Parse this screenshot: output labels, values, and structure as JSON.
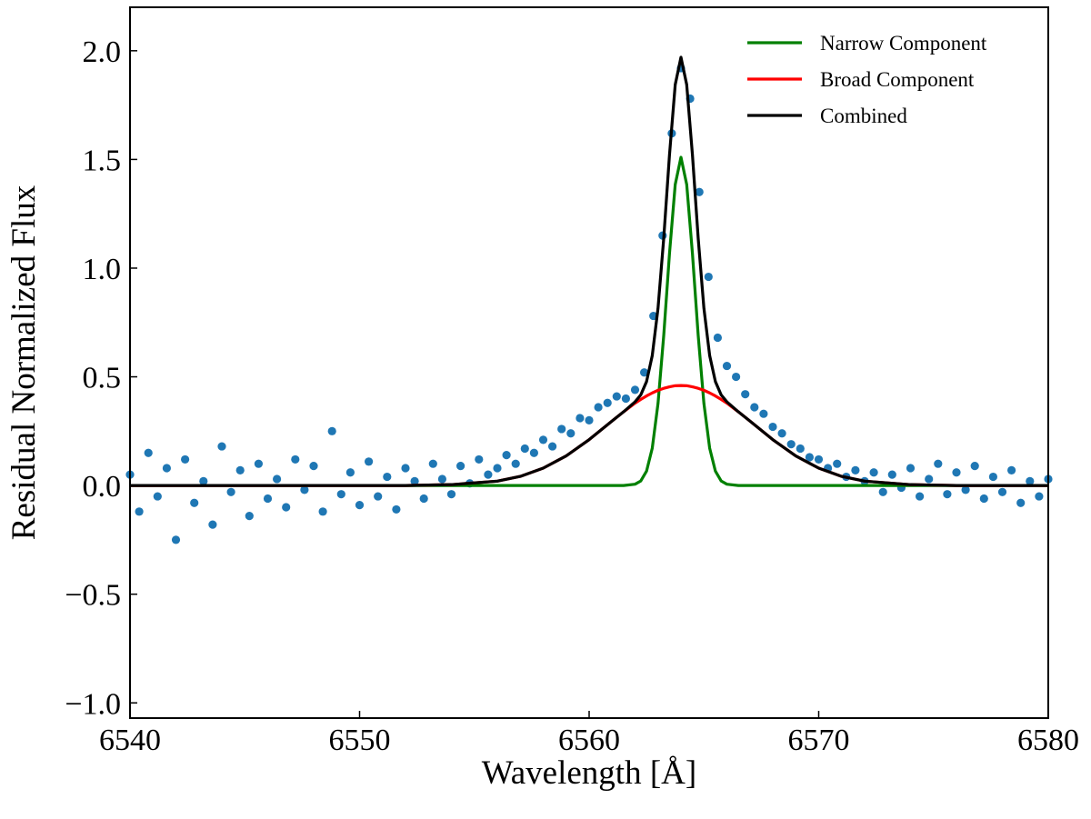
{
  "chart_data": {
    "type": "line",
    "xlabel": "Wavelength [Å]",
    "ylabel": "Residual Normalized Flux",
    "xlim": [
      6540,
      6580
    ],
    "ylim": [
      -1.07,
      2.2
    ],
    "xticks": [
      6540,
      6550,
      6560,
      6570,
      6580
    ],
    "yticks": [
      {
        "value": -1.0,
        "label": "−1.0"
      },
      {
        "value": -0.5,
        "label": "−0.5"
      },
      {
        "value": 0.0,
        "label": "0.0"
      },
      0.5,
      {
        "value": 1.0,
        "label": "1.0"
      },
      1.5,
      {
        "value": 2.0,
        "label": "2.0"
      }
    ],
    "legend": "upper right",
    "points": {
      "color": "#1f77b4",
      "x": [
        6540.0,
        6540.4,
        6540.8,
        6541.2,
        6541.6,
        6542.0,
        6542.4,
        6542.8,
        6543.2,
        6543.6,
        6544.0,
        6544.4,
        6544.8,
        6545.2,
        6545.6,
        6546.0,
        6546.4,
        6546.8,
        6547.2,
        6547.6,
        6548.0,
        6548.4,
        6548.8,
        6549.2,
        6549.6,
        6550.0,
        6550.4,
        6550.8,
        6551.2,
        6551.6,
        6552.0,
        6552.4,
        6552.8,
        6553.2,
        6553.6,
        6554.0,
        6554.4,
        6554.8,
        6555.2,
        6555.6,
        6556.0,
        6556.4,
        6556.8,
        6557.2,
        6557.6,
        6558.0,
        6558.4,
        6558.8,
        6559.2,
        6559.6,
        6560.0,
        6560.4,
        6560.8,
        6561.2,
        6561.6,
        6562.0,
        6562.4,
        6562.8,
        6563.2,
        6563.6,
        6564.0,
        6564.4,
        6564.8,
        6565.2,
        6565.6,
        6566.0,
        6566.4,
        6566.8,
        6567.2,
        6567.6,
        6568.0,
        6568.4,
        6568.8,
        6569.2,
        6569.6,
        6570.0,
        6570.4,
        6570.8,
        6571.2,
        6571.6,
        6572.0,
        6572.4,
        6572.8,
        6573.2,
        6573.6,
        6574.0,
        6574.4,
        6574.8,
        6575.2,
        6575.6,
        6576.0,
        6576.4,
        6576.8,
        6577.2,
        6577.6,
        6578.0,
        6578.4,
        6578.8,
        6579.2,
        6579.6,
        6580.0
      ],
      "values": [
        0.05,
        -0.12,
        0.15,
        -0.05,
        0.08,
        -0.25,
        0.12,
        -0.08,
        0.02,
        -0.18,
        0.18,
        -0.03,
        0.07,
        -0.14,
        0.1,
        -0.06,
        0.03,
        -0.1,
        0.12,
        -0.02,
        0.09,
        -0.12,
        0.25,
        -0.04,
        0.06,
        -0.09,
        0.11,
        -0.05,
        0.04,
        -0.11,
        0.08,
        0.02,
        -0.06,
        0.1,
        0.03,
        -0.04,
        0.09,
        0.01,
        0.12,
        0.05,
        0.08,
        0.14,
        0.1,
        0.17,
        0.15,
        0.21,
        0.18,
        0.26,
        0.24,
        0.31,
        0.3,
        0.36,
        0.38,
        0.41,
        0.4,
        0.44,
        0.52,
        0.78,
        1.15,
        1.62,
        1.92,
        1.78,
        1.35,
        0.96,
        0.68,
        0.55,
        0.5,
        0.42,
        0.36,
        0.33,
        0.27,
        0.24,
        0.19,
        0.17,
        0.13,
        0.12,
        0.08,
        0.1,
        0.04,
        0.07,
        0.02,
        0.06,
        -0.03,
        0.05,
        -0.01,
        0.08,
        -0.05,
        0.03,
        0.1,
        -0.04,
        0.06,
        -0.02,
        0.09,
        -0.06,
        0.04,
        -0.03,
        0.07,
        -0.08,
        0.02,
        -0.05,
        0.03
      ]
    },
    "x": [
      6540,
      6542,
      6544,
      6546,
      6548,
      6550,
      6552,
      6554,
      6556,
      6557,
      6558,
      6559,
      6560,
      6561,
      6561.5,
      6562,
      6562.25,
      6562.5,
      6562.75,
      6563,
      6563.25,
      6563.5,
      6563.75,
      6564,
      6564.25,
      6564.5,
      6564.75,
      6565,
      6565.25,
      6565.5,
      6565.75,
      6566,
      6566.5,
      6567,
      6568,
      6569,
      6570,
      6571,
      6572,
      6574,
      6576,
      6578,
      6580,
      6580
    ],
    "series": [
      {
        "name": "Narrow Component",
        "color": "#008000",
        "values": [
          0,
          0,
          0,
          0,
          0,
          0,
          0,
          0,
          0,
          0,
          0,
          0,
          0,
          0,
          0,
          0.006,
          0.021,
          0.066,
          0.172,
          0.377,
          0.691,
          1.067,
          1.385,
          1.51,
          1.385,
          1.067,
          0.691,
          0.377,
          0.172,
          0.066,
          0.021,
          0.006,
          0,
          0,
          0,
          0,
          0,
          0,
          0,
          0,
          0,
          0,
          0,
          0
        ]
      },
      {
        "name": "Broad Component",
        "color": "#ff0000",
        "values": [
          0,
          0,
          0,
          0,
          0,
          0,
          0,
          0.004,
          0.02,
          0.042,
          0.08,
          0.136,
          0.211,
          0.297,
          0.339,
          0.379,
          0.396,
          0.412,
          0.426,
          0.438,
          0.447,
          0.454,
          0.459,
          0.46,
          0.459,
          0.454,
          0.447,
          0.438,
          0.426,
          0.412,
          0.396,
          0.379,
          0.339,
          0.297,
          0.211,
          0.136,
          0.08,
          0.042,
          0.02,
          0.004,
          0,
          0,
          0,
          0
        ]
      },
      {
        "name": "Combined",
        "color": "#000000",
        "values": [
          0,
          0,
          0,
          0,
          0,
          0,
          0,
          0.004,
          0.02,
          0.042,
          0.08,
          0.136,
          0.211,
          0.297,
          0.339,
          0.385,
          0.417,
          0.478,
          0.598,
          0.815,
          1.138,
          1.521,
          1.844,
          1.97,
          1.844,
          1.521,
          1.138,
          0.815,
          0.598,
          0.478,
          0.417,
          0.385,
          0.339,
          0.297,
          0.211,
          0.136,
          0.08,
          0.042,
          0.02,
          0.004,
          0,
          0,
          0,
          0
        ]
      }
    ]
  }
}
